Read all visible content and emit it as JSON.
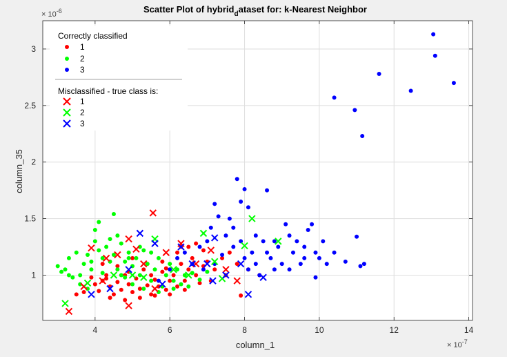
{
  "chart_data": {
    "type": "scatter",
    "title_main": "Scatter Plot of hybrid",
    "title_sub": "d",
    "title_rest": "ataset for: k-Nearest Neighbor",
    "xlabel": "column_1",
    "ylabel": "column_35",
    "x_exponent_base": "× 10",
    "x_exponent_power": "-7",
    "y_exponent_base": "× 10",
    "y_exponent_power": "-6",
    "xlim": [
      2.6,
      14.1
    ],
    "ylim": [
      0.6,
      3.25
    ],
    "xticks": [
      4,
      6,
      8,
      10,
      12,
      14
    ],
    "yticks": [
      1,
      1.5,
      2,
      2.5,
      3
    ],
    "xtick_labels": [
      "4",
      "6",
      "8",
      "10",
      "12",
      "14"
    ],
    "ytick_labels": [
      "1",
      "1.5",
      "2",
      "2.5",
      "3"
    ],
    "grid": true,
    "legend_position": "top-left",
    "legend": {
      "correct_title": "Correctly classified",
      "mis_title": "Misclassified - true class is:",
      "labels": [
        "1",
        "2",
        "3"
      ]
    },
    "colors": {
      "class1": "#ff0000",
      "class2": "#00ff00",
      "class3": "#0000ff"
    },
    "correct_points": {
      "class1": [
        [
          3.9,
          0.98
        ],
        [
          4.0,
          0.92
        ],
        [
          4.1,
          0.86
        ],
        [
          4.2,
          0.95
        ],
        [
          4.3,
          1.0
        ],
        [
          4.4,
          0.9
        ],
        [
          4.5,
          0.83
        ],
        [
          4.6,
          0.94
        ],
        [
          4.7,
          0.87
        ],
        [
          4.8,
          1.0
        ],
        [
          4.9,
          0.92
        ],
        [
          5.0,
          0.85
        ],
        [
          5.1,
          0.97
        ],
        [
          5.2,
          0.88
        ],
        [
          5.3,
          1.05
        ],
        [
          5.4,
          0.91
        ],
        [
          5.5,
          0.83
        ],
        [
          5.6,
          0.96
        ],
        [
          5.7,
          0.9
        ],
        [
          5.8,
          1.03
        ],
        [
          5.9,
          0.87
        ],
        [
          6.0,
          0.95
        ],
        [
          6.1,
          1.0
        ],
        [
          6.2,
          0.9
        ],
        [
          6.3,
          1.1
        ],
        [
          6.4,
          0.95
        ],
        [
          6.5,
          1.05
        ],
        [
          6.6,
          1.15
        ],
        [
          6.7,
          1.0
        ],
        [
          6.8,
          0.93
        ],
        [
          6.9,
          1.08
        ],
        [
          7.0,
          1.12
        ],
        [
          7.2,
          1.05
        ],
        [
          7.4,
          1.15
        ],
        [
          7.6,
          1.2
        ],
        [
          7.8,
          1.1
        ],
        [
          7.9,
          0.82
        ],
        [
          4.2,
          1.1
        ],
        [
          4.6,
          1.08
        ],
        [
          5.0,
          1.15
        ],
        [
          5.4,
          1.1
        ],
        [
          5.8,
          1.12
        ],
        [
          6.2,
          1.2
        ],
        [
          6.5,
          1.25
        ],
        [
          6.9,
          1.22
        ],
        [
          3.7,
          0.85
        ],
        [
          3.5,
          0.83
        ],
        [
          4.4,
          0.8
        ],
        [
          4.8,
          0.78
        ],
        [
          5.2,
          0.8
        ],
        [
          5.6,
          0.82
        ],
        [
          6.0,
          0.83
        ],
        [
          6.4,
          0.87
        ],
        [
          7.1,
          0.95
        ],
        [
          7.5,
          1.0
        ],
        [
          8.1,
          1.05
        ],
        [
          8.4,
          1.0
        ],
        [
          6.7,
          1.28
        ],
        [
          6.3,
          1.25
        ],
        [
          5.5,
          1.0
        ],
        [
          4.9,
          1.03
        ],
        [
          4.3,
          0.97
        ],
        [
          5.9,
          1.06
        ]
      ],
      "class2": [
        [
          3.0,
          1.08
        ],
        [
          3.2,
          1.05
        ],
        [
          3.3,
          1.15
        ],
        [
          3.5,
          1.2
        ],
        [
          3.6,
          1.0
        ],
        [
          3.7,
          1.1
        ],
        [
          3.8,
          1.18
        ],
        [
          3.9,
          1.05
        ],
        [
          4.0,
          1.3
        ],
        [
          4.1,
          1.22
        ],
        [
          4.2,
          1.15
        ],
        [
          4.3,
          1.25
        ],
        [
          4.4,
          1.32
        ],
        [
          4.5,
          1.18
        ],
        [
          4.6,
          1.05
        ],
        [
          4.7,
          1.28
        ],
        [
          4.8,
          1.12
        ],
        [
          4.9,
          1.2
        ],
        [
          5.0,
          1.08
        ],
        [
          5.1,
          1.15
        ],
        [
          5.2,
          1.0
        ],
        [
          5.3,
          1.22
        ],
        [
          5.4,
          1.1
        ],
        [
          5.5,
          0.95
        ],
        [
          5.6,
          1.05
        ],
        [
          5.7,
          1.15
        ],
        [
          5.8,
          0.9
        ],
        [
          5.9,
          1.0
        ],
        [
          6.0,
          1.1
        ],
        [
          6.1,
          0.95
        ],
        [
          6.2,
          1.05
        ],
        [
          6.3,
          0.92
        ],
        [
          6.4,
          1.0
        ],
        [
          6.5,
          0.9
        ],
        [
          6.6,
          1.02
        ],
        [
          6.8,
          0.96
        ],
        [
          7.0,
          1.03
        ],
        [
          3.4,
          0.98
        ],
        [
          3.6,
          0.92
        ],
        [
          3.8,
          0.88
        ],
        [
          4.0,
          1.4
        ],
        [
          4.1,
          1.47
        ],
        [
          4.5,
          1.54
        ],
        [
          4.4,
          1.12
        ],
        [
          4.6,
          1.35
        ],
        [
          4.2,
          1.02
        ],
        [
          4.8,
          0.98
        ],
        [
          5.0,
          0.92
        ],
        [
          5.3,
          0.88
        ],
        [
          5.7,
          0.85
        ],
        [
          6.1,
          0.88
        ],
        [
          3.3,
          1.0
        ],
        [
          3.1,
          1.03
        ],
        [
          4.7,
          1.0
        ],
        [
          5.5,
          1.2
        ],
        [
          5.2,
          1.25
        ],
        [
          4.9,
          1.15
        ],
        [
          3.9,
          1.12
        ]
      ],
      "class3": [
        [
          5.7,
          0.95
        ],
        [
          6.0,
          1.05
        ],
        [
          6.2,
          1.15
        ],
        [
          6.4,
          1.2
        ],
        [
          6.6,
          1.1
        ],
        [
          6.8,
          1.25
        ],
        [
          7.0,
          1.3
        ],
        [
          7.1,
          1.42
        ],
        [
          7.2,
          1.63
        ],
        [
          7.3,
          1.52
        ],
        [
          7.5,
          1.35
        ],
        [
          7.6,
          1.5
        ],
        [
          7.7,
          1.42
        ],
        [
          7.8,
          1.85
        ],
        [
          7.9,
          1.65
        ],
        [
          8.0,
          1.76
        ],
        [
          8.1,
          1.6
        ],
        [
          8.2,
          1.2
        ],
        [
          8.3,
          1.1
        ],
        [
          8.4,
          1.0
        ],
        [
          8.5,
          1.3
        ],
        [
          8.6,
          1.75
        ],
        [
          8.7,
          1.15
        ],
        [
          8.8,
          1.05
        ],
        [
          8.9,
          1.25
        ],
        [
          9.0,
          1.1
        ],
        [
          9.1,
          1.45
        ],
        [
          9.2,
          1.35
        ],
        [
          9.3,
          1.2
        ],
        [
          9.4,
          1.3
        ],
        [
          9.5,
          1.1
        ],
        [
          9.6,
          1.25
        ],
        [
          9.7,
          1.4
        ],
        [
          9.8,
          1.45
        ],
        [
          9.9,
          0.98
        ],
        [
          10.0,
          1.15
        ],
        [
          10.1,
          1.3
        ],
        [
          10.2,
          1.1
        ],
        [
          10.4,
          1.2
        ],
        [
          10.7,
          1.12
        ],
        [
          11.0,
          1.34
        ],
        [
          11.1,
          1.08
        ],
        [
          11.2,
          1.1
        ],
        [
          10.4,
          2.57
        ],
        [
          10.95,
          2.46
        ],
        [
          11.15,
          2.23
        ],
        [
          11.6,
          2.78
        ],
        [
          12.45,
          2.63
        ],
        [
          13.05,
          3.13
        ],
        [
          13.1,
          2.94
        ],
        [
          13.6,
          2.7
        ],
        [
          7.4,
          1.18
        ],
        [
          7.7,
          1.25
        ],
        [
          8.0,
          1.15
        ],
        [
          8.3,
          1.35
        ],
        [
          8.6,
          1.2
        ],
        [
          9.2,
          1.05
        ],
        [
          9.6,
          1.15
        ],
        [
          9.9,
          1.2
        ],
        [
          7.2,
          1.1
        ],
        [
          6.9,
          1.05
        ],
        [
          7.9,
          1.3
        ],
        [
          8.8,
          1.3
        ],
        [
          8.1,
          1.05
        ]
      ]
    },
    "mis_points": {
      "class1": [
        [
          3.3,
          0.68
        ],
        [
          3.7,
          0.9
        ],
        [
          3.9,
          1.24
        ],
        [
          4.3,
          1.15
        ],
        [
          4.6,
          1.18
        ],
        [
          4.9,
          1.32
        ],
        [
          5.1,
          1.23
        ],
        [
          5.3,
          1.1
        ],
        [
          5.55,
          1.55
        ],
        [
          5.9,
          1.2
        ],
        [
          6.3,
          1.28
        ],
        [
          6.7,
          1.1
        ],
        [
          7.1,
          1.22
        ],
        [
          7.5,
          1.05
        ],
        [
          7.8,
          0.95
        ],
        [
          4.9,
          0.73
        ],
        [
          4.2,
          0.95
        ],
        [
          5.6,
          0.88
        ]
      ],
      "class2": [
        [
          3.2,
          0.75
        ],
        [
          3.8,
          0.93
        ],
        [
          4.5,
          1.0
        ],
        [
          5.0,
          1.0
        ],
        [
          5.6,
          1.32
        ],
        [
          6.1,
          1.05
        ],
        [
          6.9,
          1.37
        ],
        [
          7.2,
          1.12
        ],
        [
          7.4,
          0.97
        ],
        [
          8.0,
          1.26
        ],
        [
          8.2,
          1.5
        ],
        [
          8.9,
          1.3
        ],
        [
          6.5,
          1.0
        ],
        [
          5.3,
          0.98
        ]
      ],
      "class3": [
        [
          3.9,
          0.83
        ],
        [
          4.4,
          0.88
        ],
        [
          4.9,
          1.05
        ],
        [
          5.2,
          1.37
        ],
        [
          5.6,
          1.28
        ],
        [
          5.8,
          0.92
        ],
        [
          6.3,
          1.25
        ],
        [
          6.6,
          1.1
        ],
        [
          7.0,
          1.1
        ],
        [
          7.2,
          1.33
        ],
        [
          7.5,
          1.0
        ],
        [
          7.9,
          1.1
        ],
        [
          8.1,
          0.83
        ],
        [
          8.5,
          0.98
        ],
        [
          7.15,
          0.95
        ]
      ]
    }
  }
}
